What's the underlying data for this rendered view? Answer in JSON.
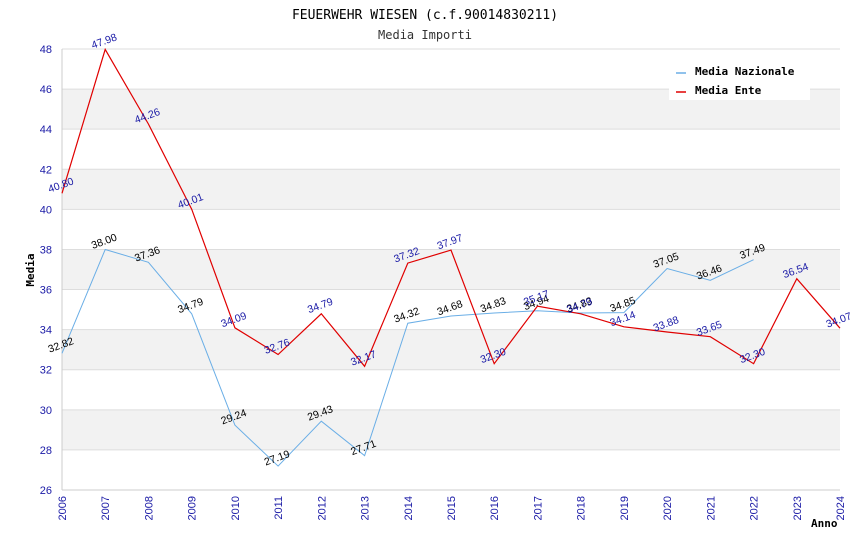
{
  "chart_data": {
    "type": "line",
    "title": "FEUERWEHR WIESEN (c.f.90014830211)",
    "subtitle": "Media Importi",
    "xlabel": "Anno",
    "ylabel": "Media",
    "ylim": [
      26,
      48
    ],
    "yticks": [
      "26",
      "28",
      "30",
      "32",
      "34",
      "36",
      "38",
      "40",
      "42",
      "44",
      "46",
      "48"
    ],
    "x": [
      "2006",
      "2007",
      "2008",
      "2009",
      "2010",
      "2011",
      "2012",
      "2013",
      "2014",
      "2015",
      "2016",
      "2017",
      "2018",
      "2019",
      "2020",
      "2021",
      "2022",
      "2023",
      "2024"
    ],
    "legend_position": "top-right",
    "series": [
      {
        "name": "Media Nazionale",
        "color": "#6aaee6",
        "label_color": "#000000",
        "values": [
          32.82,
          38.0,
          37.36,
          34.79,
          29.24,
          27.19,
          29.43,
          27.71,
          34.32,
          34.68,
          34.83,
          34.94,
          34.83,
          34.85,
          37.05,
          36.46,
          37.49,
          null,
          null
        ],
        "labels": [
          "32.82",
          "38.00",
          "37.36",
          "34.79",
          "29.24",
          "27.19",
          "29.43",
          "27.71",
          "34.32",
          "34.68",
          "34.83",
          "34.94",
          "34.83",
          "34.85",
          "37.05",
          "36.46",
          "37.49",
          null,
          null
        ]
      },
      {
        "name": "Media Ente",
        "color": "#e00000",
        "label_color": "#1a1aa6",
        "values": [
          40.8,
          47.98,
          44.26,
          40.01,
          34.09,
          32.76,
          34.79,
          32.17,
          37.32,
          37.97,
          32.3,
          35.17,
          34.79,
          34.14,
          33.88,
          33.65,
          32.3,
          36.54,
          34.07
        ],
        "labels": [
          "40.80",
          "47.98",
          "44.26",
          "40.01",
          "34.09",
          "32.76",
          "34.79",
          "32.17",
          "37.32",
          "37.97",
          "32.30",
          "35.17",
          "34.79",
          "34.14",
          "33.88",
          "33.65",
          "32.30",
          "36.54",
          "34.07"
        ]
      }
    ]
  }
}
